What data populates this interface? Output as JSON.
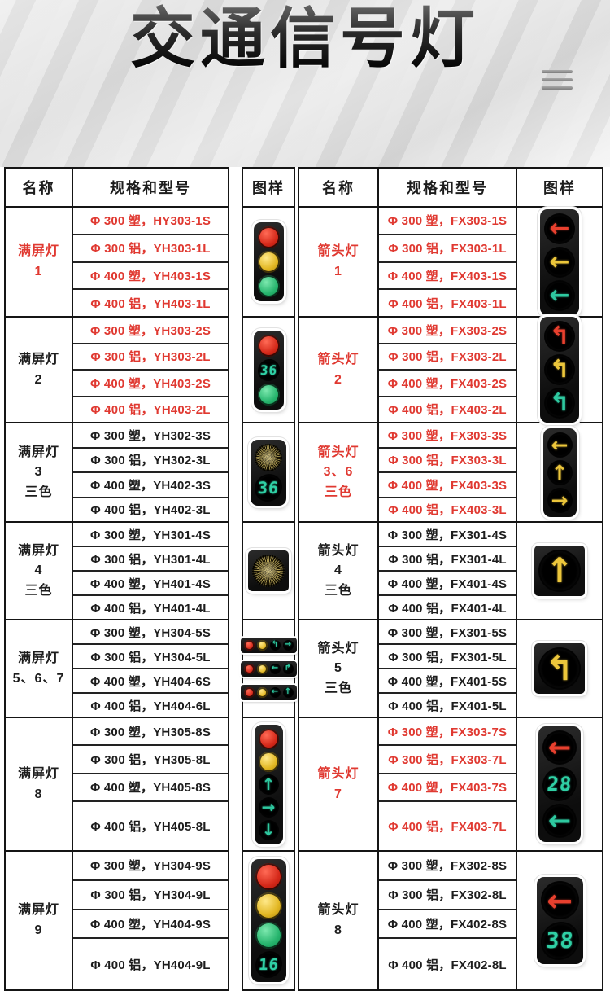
{
  "page": {
    "title": "交通信号灯"
  },
  "columns": {
    "name": "名称",
    "spec": "规格和型号",
    "image": "图样"
  },
  "colors": {
    "red_text": "#e03931",
    "black_text": "#1d1d1d",
    "border": "#151515",
    "countdown_green": "#2fd0a5",
    "arrow_red": "#e8402e",
    "arrow_yellow": "#ecc63b",
    "arrow_green": "#2ec9a0",
    "disc_red": "#d5291a",
    "disc_yellow": "#e2b723",
    "disc_green": "#27b56e"
  },
  "left_table": {
    "rows": [
      {
        "name_lines": [
          "满屏灯",
          "1"
        ],
        "name_red": true,
        "specs_red": true,
        "specs": [
          "Φ 300 塑，HY303-1S",
          "Φ 300 铝，YH303-1L",
          "Φ 400 塑，YH403-1S",
          "Φ 400 铝，YH403-1L"
        ],
        "light": {
          "type": "v",
          "cells": [
            "disc:red",
            "disc:yellow",
            "disc:green"
          ],
          "label": "red-yellow-green-full-signal"
        }
      },
      {
        "name_lines": [
          "满屏灯",
          "2"
        ],
        "name_red": false,
        "specs_red": true,
        "specs": [
          "Φ 300 塑，YH303-2S",
          "Φ 300 铝，YH303-2L",
          "Φ 400 塑，YH403-2S",
          "Φ 400 铝，YH403-2L"
        ],
        "light": {
          "type": "v",
          "cells": [
            "disc:red",
            "count:36",
            "disc:green"
          ],
          "label": "red-countdown-green-signal"
        }
      },
      {
        "name_lines": [
          "满屏灯",
          "3",
          "三色"
        ],
        "name_red": false,
        "specs_red": false,
        "specs": [
          "Φ 300 塑，YH302-3S",
          "Φ 300 铝，YH302-3L",
          "Φ 400 塑，YH402-3S",
          "Φ 400 铝，YH402-3L"
        ],
        "light": {
          "type": "v",
          "cells": [
            "burst",
            "count:36"
          ],
          "label": "yellow-lamp-countdown-signal"
        }
      },
      {
        "name_lines": [
          "满屏灯",
          "4",
          "三色"
        ],
        "name_red": false,
        "specs_red": false,
        "specs": [
          "Φ 300 塑，YH301-4S",
          "Φ 300 铝，YH301-4L",
          "Φ 400 塑，YH401-4S",
          "Φ 400 铝，YH401-4L"
        ],
        "light": {
          "type": "sq",
          "cells": [
            "burst"
          ],
          "label": "single-yellow-lamp-signal"
        }
      },
      {
        "name_lines": [
          "满屏灯",
          "5、6、7"
        ],
        "name_red": false,
        "specs_red": false,
        "specs": [
          "Φ 300 塑，YH304-5S",
          "Φ 300 铝，YH304-5L",
          "Φ 400 塑，YH404-6S",
          "Φ 400 铝，YH404-6L"
        ],
        "light": {
          "type": "hbars",
          "bars": [
            [
              "disc:red",
              "disc:yellow",
              "arrow:turnleft:green",
              "arrow:right:green"
            ],
            [
              "disc:red",
              "disc:yellow",
              "arrow:left:green",
              "arrow:turnright:green"
            ],
            [
              "disc:red",
              "disc:yellow",
              "arrow:left:green",
              "arrow:up:green"
            ]
          ],
          "label": "horizontal-lamp-arrow-signals"
        }
      },
      {
        "name_lines": [
          "满屏灯",
          "8"
        ],
        "name_red": false,
        "specs_red": false,
        "specs": [
          "Φ 300 塑，YH305-8S",
          "Φ 300 铝，YH305-8L",
          "Φ 400 塑，YH405-8S",
          "Φ 400 铝，YH405-8L"
        ],
        "light": {
          "type": "v",
          "cells": [
            "disc:red",
            "disc:yellow",
            "arrow:up:green",
            "arrow:right:green",
            "arrow:down:green"
          ],
          "label": "five-unit-arrow-signal"
        }
      },
      {
        "name_lines": [
          "满屏灯",
          "9"
        ],
        "name_red": false,
        "specs_red": false,
        "specs": [
          "Φ 300 塑，YH304-9S",
          "Φ 300 铝，YH304-9L",
          "Φ 400 塑，YH404-9S",
          "Φ 400 铝，YH404-9L"
        ],
        "light": {
          "type": "v",
          "cells": [
            "disc:red",
            "disc:yellow",
            "disc:green",
            "count:16"
          ],
          "label": "four-unit-countdown-signal"
        }
      }
    ]
  },
  "right_table": {
    "rows": [
      {
        "name_lines": [
          "箭头灯",
          "1"
        ],
        "name_red": true,
        "specs_red": true,
        "specs": [
          "Φ 300 塑，FX303-1S",
          "Φ 300 铝，FX303-1L",
          "Φ 400 塑，FX403-1S",
          "Φ 400 铝，FX403-1L"
        ],
        "light": {
          "type": "v",
          "cells": [
            "arrow:left:red",
            "arrow:left:yellow",
            "arrow:left:green"
          ],
          "label": "left-arrow-three-color-signal"
        }
      },
      {
        "name_lines": [
          "箭头灯",
          "2"
        ],
        "name_red": true,
        "specs_red": true,
        "specs": [
          "Φ 300 塑，FX303-2S",
          "Φ 300 铝，FX303-2L",
          "Φ 400 塑，FX403-2S",
          "Φ 400 铝，FX403-2L"
        ],
        "light": {
          "type": "v",
          "cells": [
            "arrow:turnleft:red",
            "arrow:turnleft:yellow",
            "arrow:turnleft:green"
          ],
          "label": "turn-arrow-three-color-signal"
        }
      },
      {
        "name_lines": [
          "箭头灯",
          "3、6",
          "三色"
        ],
        "name_red": true,
        "specs_red": true,
        "specs": [
          "Φ 300 塑，FX303-3S",
          "Φ 300 铝，FX303-3L",
          "Φ 400 塑，FX403-3S",
          "Φ 400 铝，FX403-3L"
        ],
        "light": {
          "type": "v",
          "cells": [
            "arrow:left:yellow",
            "arrow:up:yellow",
            "arrow:right:yellow"
          ],
          "label": "yellow-direction-arrow-signal"
        }
      },
      {
        "name_lines": [
          "箭头灯",
          "4",
          "三色"
        ],
        "name_red": false,
        "specs_red": false,
        "specs": [
          "Φ 300 塑，FX301-4S",
          "Φ 300 铝，FX301-4L",
          "Φ 400 塑，FX401-4S",
          "Φ 400 铝，FX401-4L"
        ],
        "light": {
          "type": "sq",
          "cells": [
            "arrow:up:yellow"
          ],
          "label": "single-up-arrow-signal"
        }
      },
      {
        "name_lines": [
          "箭头灯",
          "5",
          "三色"
        ],
        "name_red": false,
        "specs_red": false,
        "specs": [
          "Φ 300 塑，FX301-5S",
          "Φ 300 铝，FX301-5L",
          "Φ 400 塑，FX401-5S",
          "Φ 400 铝，FX401-5L"
        ],
        "light": {
          "type": "sq",
          "cells": [
            "arrow:turnleft:yellow"
          ],
          "label": "single-turn-arrow-signal"
        }
      },
      {
        "name_lines": [
          "箭头灯",
          "7"
        ],
        "name_red": true,
        "specs_red": true,
        "specs": [
          "Φ 300 塑，FX303-7S",
          "Φ 300 铝，FX303-7L",
          "Φ 400 塑，FX403-7S",
          "Φ 400 铝，FX403-7L"
        ],
        "light": {
          "type": "v",
          "cells": [
            "arrow:left:red",
            "count:28",
            "arrow:left:green"
          ],
          "label": "arrow-countdown-arrow-signal"
        }
      },
      {
        "name_lines": [
          "箭头灯",
          "8"
        ],
        "name_red": false,
        "specs_red": false,
        "specs": [
          "Φ 300 塑，FX302-8S",
          "Φ 300 铝，FX302-8L",
          "Φ 400 塑，FX402-8S",
          "Φ 400 铝，FX402-8L"
        ],
        "light": {
          "type": "v",
          "cells": [
            "arrow:left:red",
            "count:38"
          ],
          "label": "arrow-countdown-signal"
        }
      }
    ]
  }
}
